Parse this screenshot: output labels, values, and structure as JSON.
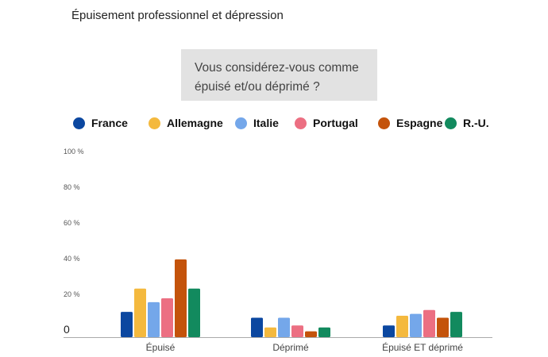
{
  "title": "Épuisement professionnel et dépression",
  "question": [
    "Vous considérez-vous comme",
    "épuisé et/ou déprimé ?"
  ],
  "chart_data": {
    "type": "bar",
    "categories": [
      "Épuisé",
      "Déprimé",
      "Épuisé ET déprimé"
    ],
    "series": [
      {
        "name": "France",
        "color": "#0b47a0",
        "values": [
          13,
          10,
          6
        ]
      },
      {
        "name": "Allemagne",
        "color": "#f4b93e",
        "values": [
          25,
          5,
          11
        ]
      },
      {
        "name": "Italie",
        "color": "#74a7ea",
        "values": [
          18,
          10,
          12
        ]
      },
      {
        "name": "Portugal",
        "color": "#ec6f82",
        "values": [
          20,
          6,
          14
        ]
      },
      {
        "name": "Espagne",
        "color": "#c4530b",
        "values": [
          40,
          3,
          10
        ]
      },
      {
        "name": "R.-U.",
        "color": "#128a5e",
        "values": [
          25,
          5,
          13
        ]
      }
    ],
    "ylim": [
      0,
      100
    ],
    "yticks": [
      "0",
      "20 %",
      "40 %",
      "60 %",
      "80 %",
      "100 %"
    ],
    "legend": "top",
    "grid": false
  }
}
